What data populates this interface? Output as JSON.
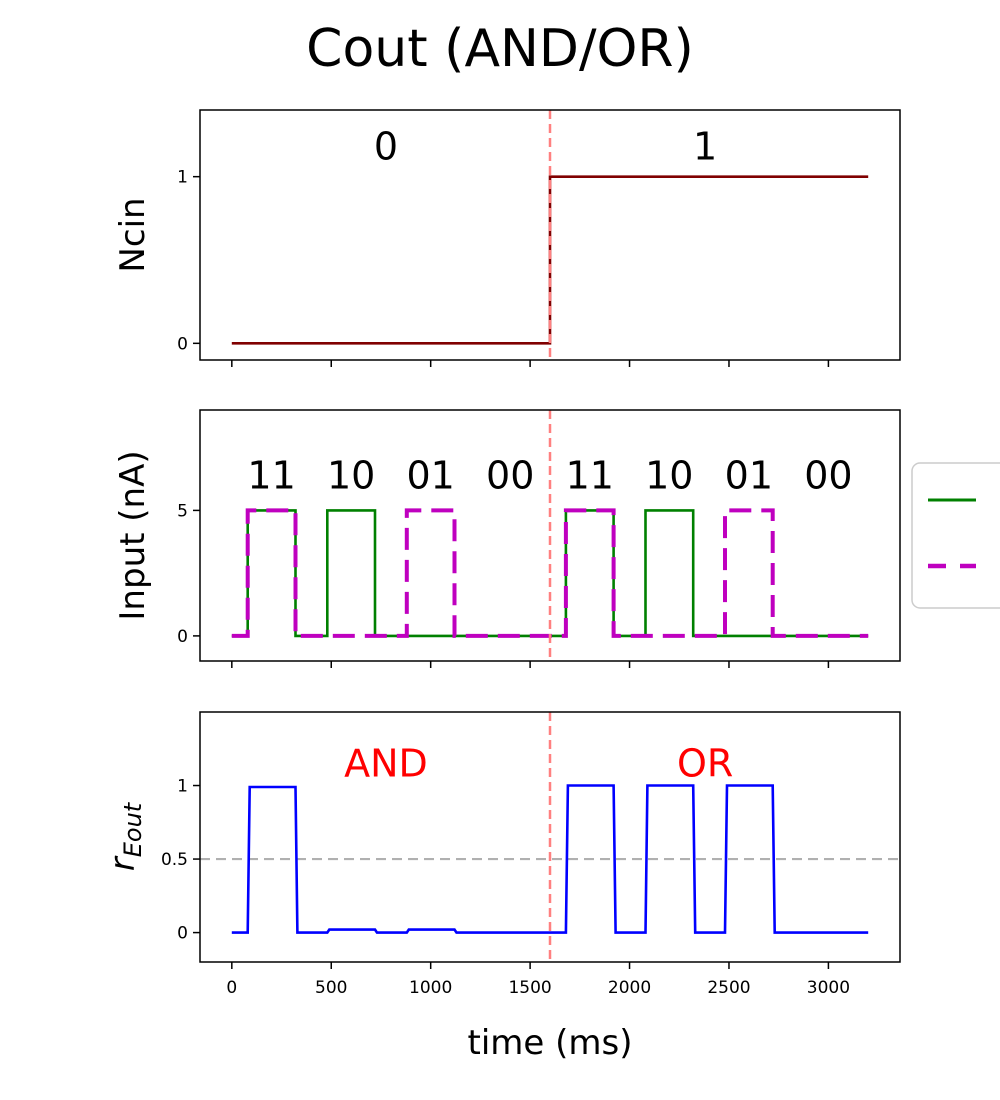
{
  "chart_data": {
    "title": "Cout (AND/OR)",
    "type": "line",
    "xlabel": "time (ms)",
    "xlim": [
      -160,
      3360
    ],
    "xticks": [
      0,
      500,
      1000,
      1500,
      2000,
      2500,
      3000
    ],
    "divider_x": 1600,
    "divider_color": "#ff8080",
    "panels": [
      {
        "ylabel": "Ncin",
        "ylim": [
          -0.1,
          1.4
        ],
        "yticks": [
          "0",
          "1"
        ],
        "ytick_values": [
          0,
          1
        ],
        "annotations": [
          {
            "text": "0",
            "x": 775,
            "y": 1.18,
            "color": "#000000"
          },
          {
            "text": "1",
            "x": 2380,
            "y": 1.18,
            "color": "#000000"
          }
        ],
        "series": [
          {
            "color": "#800000",
            "style": "solid",
            "x": [
              0,
              1600,
              1600,
              3200
            ],
            "y": [
              0,
              0,
              1,
              1
            ]
          }
        ]
      },
      {
        "ylabel": "Input (nA)",
        "ylim": [
          -1,
          9
        ],
        "yticks": [
          "0",
          "5"
        ],
        "ytick_values": [
          0,
          5
        ],
        "annotations": [
          {
            "text": "11",
            "x": 200,
            "y": 6.4,
            "color": "#000000"
          },
          {
            "text": "10",
            "x": 600,
            "y": 6.4,
            "color": "#000000"
          },
          {
            "text": "01",
            "x": 1000,
            "y": 6.4,
            "color": "#000000"
          },
          {
            "text": "00",
            "x": 1400,
            "y": 6.4,
            "color": "#000000"
          },
          {
            "text": "11",
            "x": 1800,
            "y": 6.4,
            "color": "#000000"
          },
          {
            "text": "10",
            "x": 2200,
            "y": 6.4,
            "color": "#000000"
          },
          {
            "text": "01",
            "x": 2600,
            "y": 6.4,
            "color": "#000000"
          },
          {
            "text": "00",
            "x": 3000,
            "y": 6.4,
            "color": "#000000"
          }
        ],
        "series": [
          {
            "color": "#008000",
            "style": "solid",
            "x": [
              0,
              80,
              80,
              320,
              320,
              480,
              480,
              720,
              720,
              1680,
              1680,
              1920,
              1920,
              2080,
              2080,
              2320,
              2320,
              3200
            ],
            "y": [
              0,
              0,
              5,
              5,
              0,
              0,
              5,
              5,
              0,
              0,
              5,
              5,
              0,
              0,
              5,
              5,
              0,
              0
            ]
          },
          {
            "color": "#bf00bf",
            "style": "dashed",
            "x": [
              0,
              80,
              80,
              320,
              320,
              880,
              880,
              1120,
              1120,
              1680,
              1680,
              1920,
              1920,
              2480,
              2480,
              2720,
              2720,
              3200
            ],
            "y": [
              0,
              0,
              5,
              5,
              0,
              0,
              5,
              5,
              0,
              0,
              5,
              5,
              0,
              0,
              5,
              5,
              0,
              0
            ]
          }
        ]
      },
      {
        "ylabel": "r",
        "ylabel_sub": "Eout",
        "ylim": [
          -0.2,
          1.5
        ],
        "yticks": [
          "0",
          "0.5",
          "1"
        ],
        "ytick_values": [
          0,
          0.5,
          1
        ],
        "hline": {
          "y": 0.5,
          "color": "#b0b0b0"
        },
        "annotations": [
          {
            "text": "AND",
            "x": 775,
            "y": 1.15,
            "color": "#ff0000"
          },
          {
            "text": "OR",
            "x": 2380,
            "y": 1.15,
            "color": "#ff0000"
          }
        ],
        "series": [
          {
            "color": "#0000ff",
            "style": "solid",
            "x": [
              0,
              80,
              90,
              320,
              330,
              480,
              490,
              720,
              730,
              880,
              890,
              1120,
              1130,
              1680,
              1690,
              1920,
              1930,
              2080,
              2090,
              2320,
              2330,
              2480,
              2490,
              2720,
              2730,
              3200
            ],
            "y": [
              0,
              0,
              0.99,
              0.99,
              0,
              0,
              0.02,
              0.02,
              0,
              0,
              0.02,
              0.02,
              0,
              0,
              1,
              1,
              0,
              0,
              1,
              1,
              0,
              0,
              1,
              1,
              0,
              0
            ]
          }
        ]
      }
    ],
    "legend": {
      "placement": "right",
      "entries": [
        {
          "color": "#008000",
          "style": "solid"
        },
        {
          "color": "#bf00bf",
          "style": "dashed"
        }
      ]
    }
  }
}
